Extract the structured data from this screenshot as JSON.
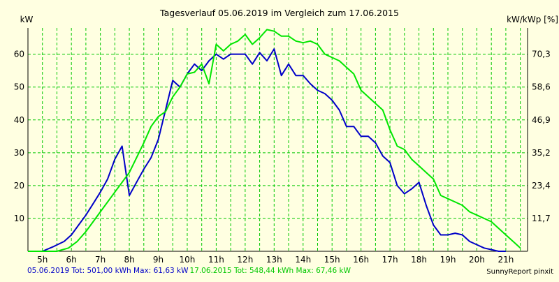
{
  "chart_data": {
    "type": "line",
    "title": "Tagesverlauf 05.06.2019 im Vergleich zum 17.06.2015",
    "ylabel": "kW",
    "y2label": "kW/kWp [%]",
    "x_unit": "h",
    "xlim": [
      4.5,
      21.75
    ],
    "ylim": [
      0,
      68
    ],
    "x_ticks": [
      "5h",
      "6h",
      "7h",
      "8h",
      "9h",
      "10h",
      "11h",
      "12h",
      "13h",
      "14h",
      "15h",
      "16h",
      "17h",
      "18h",
      "19h",
      "20h",
      "21h"
    ],
    "y_ticks": [
      "10",
      "20",
      "30",
      "40",
      "50",
      "60"
    ],
    "y2_ticks": [
      "11,7",
      "23,4",
      "35,2",
      "46,9",
      "58,6",
      "70,3"
    ],
    "grid": true,
    "series": [
      {
        "name": "05.06.2019",
        "color": "#0000c8",
        "x": [
          4.5,
          5.0,
          5.4,
          5.75,
          6.0,
          6.25,
          6.5,
          6.75,
          7.0,
          7.25,
          7.5,
          7.75,
          8.0,
          8.25,
          8.5,
          8.75,
          9.0,
          9.25,
          9.5,
          9.75,
          10.0,
          10.25,
          10.5,
          10.75,
          11.0,
          11.25,
          11.5,
          11.75,
          12.0,
          12.25,
          12.5,
          12.75,
          13.0,
          13.25,
          13.5,
          13.75,
          14.0,
          14.25,
          14.5,
          14.75,
          15.0,
          15.25,
          15.5,
          15.75,
          16.0,
          16.25,
          16.5,
          16.75,
          17.0,
          17.25,
          17.5,
          17.75,
          18.0,
          18.25,
          18.5,
          18.75,
          19.0,
          19.25,
          19.5,
          19.75,
          20.0,
          20.25,
          20.5,
          20.75,
          21.0
        ],
        "y": [
          0,
          0,
          1.5,
          3,
          5,
          8,
          11,
          14.5,
          18,
          22,
          28,
          32,
          17,
          21,
          25,
          28.5,
          34,
          43,
          52,
          50,
          54,
          57,
          55,
          58,
          60,
          58.5,
          60,
          60,
          60,
          57,
          60.5,
          58,
          61.6,
          53.5,
          57,
          53.5,
          53.5,
          51,
          49,
          48,
          46,
          43,
          38,
          38,
          35,
          35,
          33,
          29,
          27,
          20,
          17.5,
          19,
          21,
          14,
          8,
          5,
          5,
          5.5,
          5,
          3,
          2,
          1,
          0.5,
          0,
          0
        ]
      },
      {
        "name": "17.06.2015",
        "color": "#00e600",
        "x": [
          4.5,
          5.5,
          5.9,
          6.2,
          6.5,
          6.75,
          7.0,
          7.5,
          8.0,
          8.5,
          8.75,
          9.0,
          9.25,
          9.5,
          9.75,
          10.0,
          10.25,
          10.5,
          10.75,
          11.0,
          11.25,
          11.5,
          11.75,
          12.0,
          12.25,
          12.5,
          12.75,
          13.0,
          13.25,
          13.5,
          13.75,
          14.0,
          14.25,
          14.5,
          14.75,
          15.0,
          15.25,
          15.5,
          15.75,
          16.0,
          16.25,
          16.5,
          16.75,
          17.0,
          17.25,
          17.5,
          17.75,
          18.0,
          18.25,
          18.5,
          18.75,
          19.0,
          19.25,
          19.5,
          19.75,
          20.0,
          20.25,
          20.5,
          20.75,
          21.0,
          21.25,
          21.5
        ],
        "y": [
          0,
          0,
          1,
          3,
          6,
          9,
          12,
          18,
          24,
          33,
          38,
          41,
          42.5,
          47,
          50,
          54,
          54.5,
          57,
          51,
          63,
          61,
          63,
          64,
          66,
          63,
          65,
          67.5,
          67,
          65.5,
          65.5,
          64,
          63.5,
          64,
          63,
          60,
          59,
          58,
          56,
          54,
          49,
          47,
          45,
          43,
          37,
          32,
          31,
          28,
          26,
          24,
          22,
          17,
          16,
          15,
          14,
          12,
          11,
          10,
          9,
          7,
          5,
          3,
          1
        ]
      }
    ]
  },
  "footer": {
    "series1_label": "05.06.2019 Tot: 501,00 kWh Max: 61,63 kW",
    "series2_label": "17.06.2015 Tot: 548,44 kWh Max: 67,46 kW"
  },
  "credit": "SunnyReport pinxit",
  "colors": {
    "background": "#ffffe1",
    "plot_background": "#ffffe1",
    "grid": "#00c800",
    "axis": "#000000"
  }
}
